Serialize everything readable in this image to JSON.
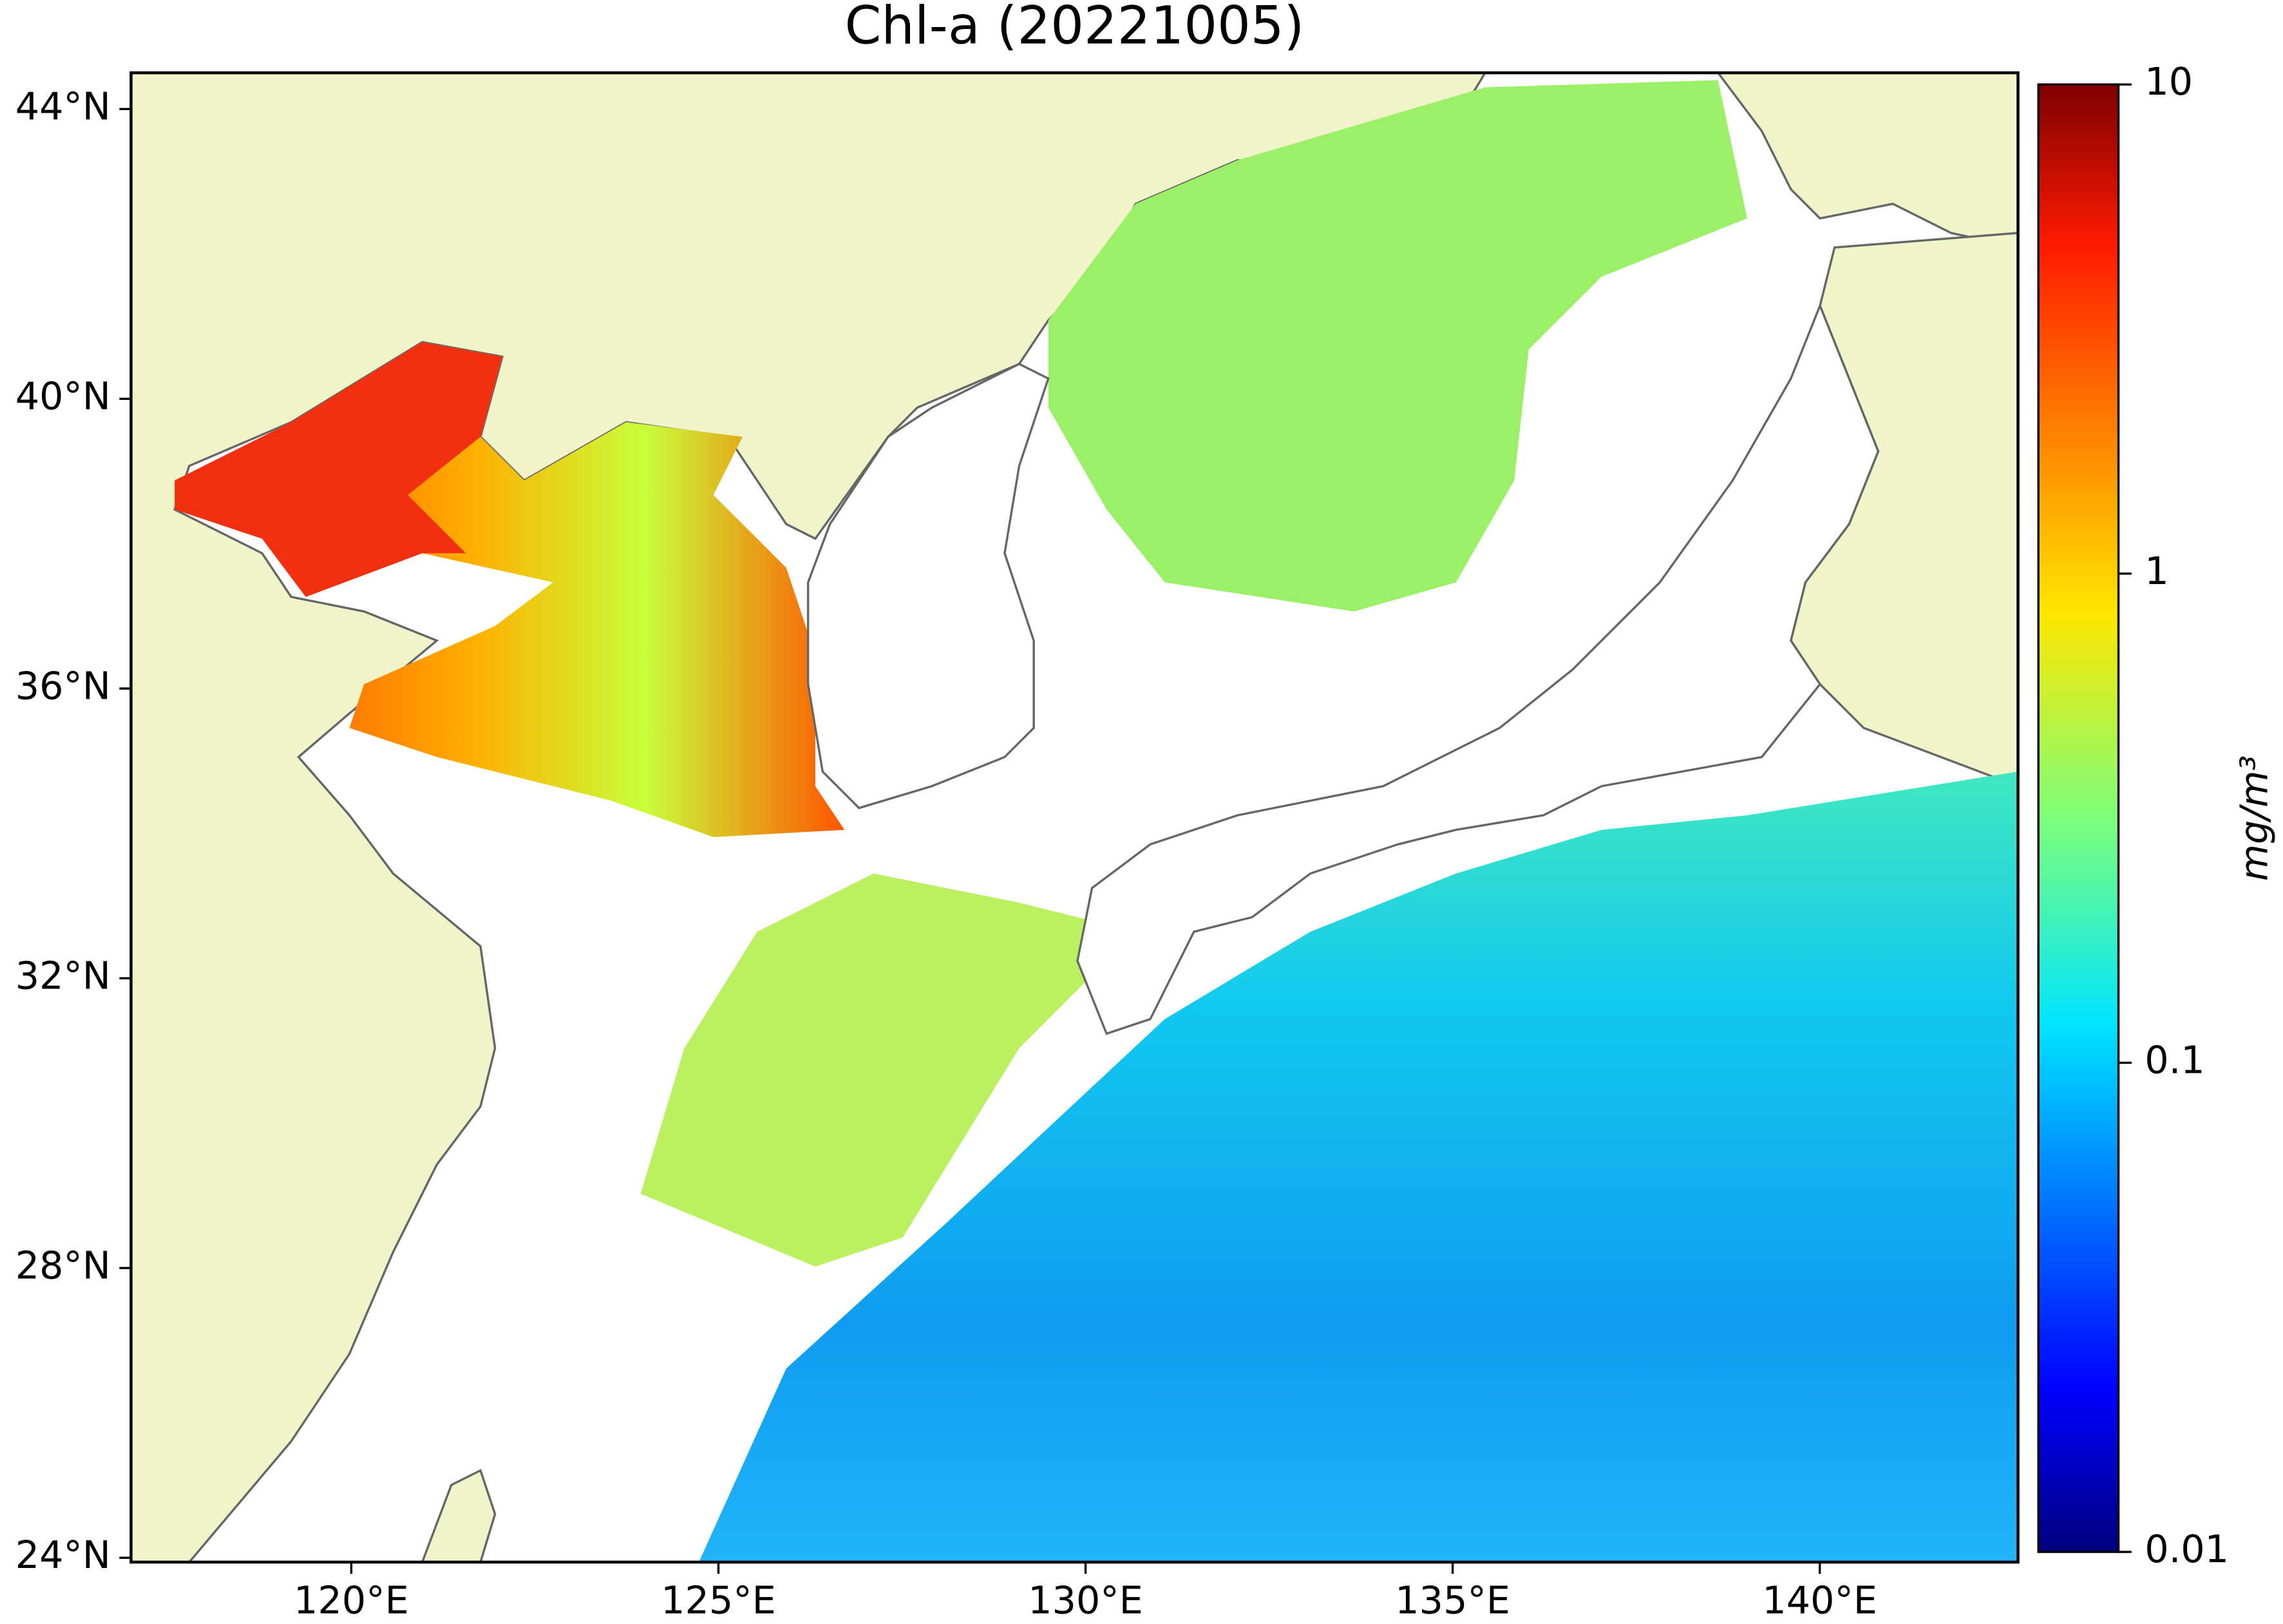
{
  "chart_data": {
    "type": "map",
    "title": "Chl-a (20221005)",
    "xlim": [
      117,
      142.7
    ],
    "ylim": [
      23.94,
      44.5
    ],
    "xticks": [
      {
        "value": 120,
        "label": "120°E"
      },
      {
        "value": 125,
        "label": "125°E"
      },
      {
        "value": 130,
        "label": "130°E"
      },
      {
        "value": 135,
        "label": "135°E"
      },
      {
        "value": 140,
        "label": "140°E"
      }
    ],
    "yticks": [
      {
        "value": 24,
        "label": "24°N"
      },
      {
        "value": 28,
        "label": "28°N"
      },
      {
        "value": 32,
        "label": "32°N"
      },
      {
        "value": 36,
        "label": "36°N"
      },
      {
        "value": 40,
        "label": "40°N"
      },
      {
        "value": 44,
        "label": "44°N"
      }
    ],
    "colorbar": {
      "label": "mg/m³",
      "lim": [
        0.01,
        10
      ],
      "ticks": [
        0.01,
        0.1,
        1,
        10
      ],
      "log": true,
      "colormap": "jet"
    }
  }
}
